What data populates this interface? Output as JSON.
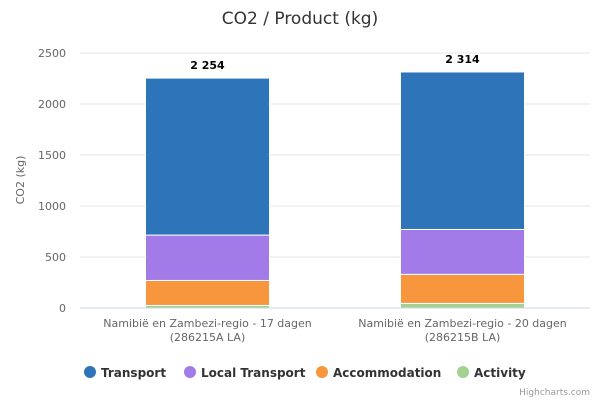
{
  "chart_data": {
    "type": "bar",
    "stacked": true,
    "title": "CO2 / Product (kg)",
    "ylabel": "CO2 (kg)",
    "ylim": [
      0,
      2500
    ],
    "yticks": [
      "0",
      "500",
      "1000",
      "1500",
      "2000",
      "2500"
    ],
    "grid": true,
    "legend_position": "bottom",
    "categories": [
      [
        "Namibië en Zambezi-regio - 17 dagen",
        "(286215A LA)"
      ],
      [
        "Namibië en Zambezi-regio - 20 dagen",
        "(286215B LA)"
      ]
    ],
    "totals": [
      "2 254",
      "2 314"
    ],
    "series": [
      {
        "name": "Activity",
        "color": "#a3d18f",
        "values": [
          25,
          45
        ]
      },
      {
        "name": "Accommodation",
        "color": "#f7963c",
        "values": [
          245,
          285
        ]
      },
      {
        "name": "Local Transport",
        "color": "#a27be8",
        "values": [
          445,
          440
        ]
      },
      {
        "name": "Transport",
        "color": "#2e74b8",
        "values": [
          1539,
          1544
        ]
      }
    ],
    "legend_order": [
      "Transport",
      "Local Transport",
      "Accommodation",
      "Activity"
    ]
  },
  "credits": "Highcharts.com"
}
